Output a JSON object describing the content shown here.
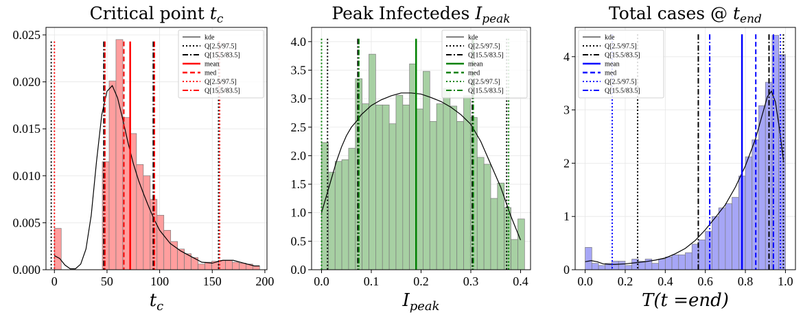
{
  "chart_data": [
    {
      "type": "histogram",
      "title": "Critical point ",
      "title_math": "t",
      "title_sub": "c",
      "xlabel": "t",
      "xlabel_sub": "c",
      "xlim": [
        -8,
        202
      ],
      "ylim": [
        0,
        0.0258
      ],
      "xticks": [
        0,
        50,
        100,
        150,
        200
      ],
      "xtick_labels": [
        "0",
        "50",
        "100",
        "150",
        "200"
      ],
      "yticks": [
        0,
        0.005,
        0.01,
        0.015,
        0.02,
        0.025
      ],
      "ytick_labels": [
        "0.000",
        "0.005",
        "0.010",
        "0.015",
        "0.020",
        "0.025"
      ],
      "color": "#ff0000",
      "bin_edges": [
        0,
        6.5,
        13,
        19.5,
        26,
        32.5,
        39,
        45.5,
        52,
        58.5,
        65,
        71.5,
        78,
        84.5,
        91,
        97.5,
        104,
        110.5,
        117,
        123.5,
        130,
        136.5,
        143,
        149.5,
        156,
        162.5,
        169,
        175.5,
        182,
        188.5,
        195
      ],
      "counts": [
        0.0044,
        0,
        0,
        0,
        0,
        0,
        0,
        0.0115,
        0.0201,
        0.0245,
        0.0162,
        0.0145,
        0.0112,
        0.01,
        0.0075,
        0.0058,
        0.0042,
        0.003,
        0.0022,
        0.0017,
        0.0013,
        0.0006,
        0.0008,
        0.0009,
        0.001,
        0.001,
        0.0008,
        0.0007,
        0.0006,
        0.0004
      ],
      "kde_x": [
        0,
        5,
        10,
        15,
        20,
        25,
        30,
        35,
        40,
        45,
        50,
        55,
        60,
        65,
        70,
        75,
        80,
        85,
        90,
        95,
        100,
        110,
        120,
        130,
        140,
        150,
        160,
        170,
        180,
        190,
        195
      ],
      "kde_y": [
        0.0015,
        0.0012,
        0.0005,
        0.0001,
        0.0001,
        0.0006,
        0.0022,
        0.0058,
        0.0115,
        0.0165,
        0.019,
        0.0196,
        0.0183,
        0.016,
        0.0135,
        0.0113,
        0.0095,
        0.008,
        0.0066,
        0.0053,
        0.0042,
        0.0028,
        0.002,
        0.0014,
        0.0008,
        0.0007,
        0.001,
        0.001,
        0.0007,
        0.0004,
        0.0004
      ],
      "vlines": [
        {
          "x": -3,
          "style": "dotted",
          "color": "#000000",
          "top": 0.0243
        },
        {
          "x": 156,
          "style": "dotted",
          "color": "#000000",
          "top": 0.0243
        },
        {
          "x": 47,
          "style": "dashdot",
          "color": "#000000",
          "top": 0.0243
        },
        {
          "x": 94,
          "style": "dashdot",
          "color": "#000000",
          "top": 0.0243
        },
        {
          "x": 72,
          "style": "solid",
          "color": "#ff0000",
          "top": 0.0243
        },
        {
          "x": 66,
          "style": "dashed",
          "color": "#ff0000",
          "top": 0.0243
        },
        {
          "x": 0,
          "style": "dotted",
          "color": "#ff0000",
          "top": 0.0243
        },
        {
          "x": 157,
          "style": "dotted",
          "color": "#ff0000",
          "top": 0.0243
        },
        {
          "x": 48,
          "style": "dashdot",
          "color": "#ff0000",
          "top": 0.0243
        },
        {
          "x": 95,
          "style": "dashdot",
          "color": "#ff0000",
          "top": 0.0243
        }
      ],
      "legend_placement": "top-right",
      "legend": [
        {
          "label": "kde",
          "style": "solid",
          "color": "#000000",
          "width": 1
        },
        {
          "label": "Q[2.5/97.5]",
          "style": "dotted",
          "color": "#000000",
          "width": 2
        },
        {
          "label": "Q[15.5/83.5]",
          "style": "dashdot",
          "color": "#000000",
          "width": 2
        },
        {
          "label": "mean",
          "style": "solid",
          "color": "#ff0000",
          "width": 2.5
        },
        {
          "label": "med",
          "style": "dashed",
          "color": "#ff0000",
          "width": 2.5
        },
        {
          "label": "Q[2.5/97.5]",
          "style": "dotted",
          "color": "#ff0000",
          "width": 2
        },
        {
          "label": "Q[15.5/83.5]",
          "style": "dashdot",
          "color": "#ff0000",
          "width": 2
        }
      ]
    },
    {
      "type": "histogram",
      "title": "Peak Infectedes ",
      "title_math": "I",
      "title_sub": "peak",
      "xlabel": "I",
      "xlabel_sub": "peak",
      "xlim": [
        -0.02,
        0.42
      ],
      "ylim": [
        0,
        4.25
      ],
      "xticks": [
        0,
        0.1,
        0.2,
        0.3,
        0.4
      ],
      "xtick_labels": [
        "0.0",
        "0.1",
        "0.2",
        "0.3",
        "0.4"
      ],
      "yticks": [
        0,
        0.5,
        1,
        1.5,
        2,
        2.5,
        3,
        3.5,
        4
      ],
      "ytick_labels": [
        "0.0",
        "0.5",
        "1.0",
        "1.5",
        "2.0",
        "2.5",
        "3.0",
        "3.5",
        "4.0"
      ],
      "color": "#008000",
      "bin_edges": [
        0,
        0.0136,
        0.0272,
        0.0408,
        0.0544,
        0.068,
        0.0816,
        0.0952,
        0.1088,
        0.1224,
        0.136,
        0.1496,
        0.1632,
        0.1768,
        0.1904,
        0.204,
        0.2176,
        0.2312,
        0.2448,
        0.2584,
        0.272,
        0.2856,
        0.2992,
        0.3128,
        0.3264,
        0.34,
        0.3536,
        0.3672,
        0.3808,
        0.3944,
        0.408
      ],
      "counts": [
        2.23,
        1.71,
        1.9,
        1.93,
        2.13,
        3.35,
        2.91,
        3.78,
        2.89,
        2.89,
        2.56,
        3.06,
        2.89,
        3.61,
        2.82,
        3.48,
        2.6,
        2.91,
        3.18,
        2.87,
        2.6,
        3.05,
        2.67,
        1.97,
        1.85,
        1.25,
        1.52,
        1.09,
        0.53,
        0.89
      ],
      "kde_x": [
        0,
        0.01,
        0.02,
        0.03,
        0.04,
        0.05,
        0.06,
        0.07,
        0.08,
        0.09,
        0.1,
        0.12,
        0.14,
        0.16,
        0.18,
        0.2,
        0.22,
        0.24,
        0.26,
        0.28,
        0.3,
        0.32,
        0.34,
        0.36,
        0.38,
        0.4
      ],
      "kde_y": [
        1.0,
        1.3,
        1.6,
        1.9,
        2.15,
        2.35,
        2.5,
        2.6,
        2.72,
        2.8,
        2.88,
        2.98,
        3.05,
        3.1,
        3.1,
        3.08,
        3.02,
        2.95,
        2.85,
        2.72,
        2.55,
        2.25,
        1.85,
        1.45,
        0.95,
        0.52
      ],
      "vlines": [
        {
          "x": 0.0,
          "style": "dotted",
          "color": "#008000",
          "top": 4.05
        },
        {
          "x": 0.012,
          "style": "dotted",
          "color": "#000000",
          "top": 4.05
        },
        {
          "x": 0.073,
          "style": "dashdot",
          "color": "#000000",
          "top": 4.05
        },
        {
          "x": 0.075,
          "style": "dashdot",
          "color": "#008000",
          "top": 4.05
        },
        {
          "x": 0.19,
          "style": "solid",
          "color": "#008000",
          "top": 4.05
        },
        {
          "x": 0.303,
          "style": "dashdot",
          "color": "#000000",
          "top": 4.05
        },
        {
          "x": 0.305,
          "style": "dashdot",
          "color": "#008000",
          "top": 4.05
        },
        {
          "x": 0.372,
          "style": "dotted",
          "color": "#000000",
          "top": 4.05
        },
        {
          "x": 0.376,
          "style": "dotted",
          "color": "#008000",
          "top": 4.05
        }
      ],
      "legend_placement": "top-right",
      "legend": [
        {
          "label": "kde",
          "style": "solid",
          "color": "#000000",
          "width": 1
        },
        {
          "label": "Q[2.5/97.5]",
          "style": "dotted",
          "color": "#000000",
          "width": 2
        },
        {
          "label": "Q[15.5/83.5]",
          "style": "dashdot",
          "color": "#000000",
          "width": 2
        },
        {
          "label": "mean",
          "style": "solid",
          "color": "#008000",
          "width": 2.5
        },
        {
          "label": "med",
          "style": "dashed",
          "color": "#008000",
          "width": 2.5
        },
        {
          "label": "Q[2.5/97.5]",
          "style": "dotted",
          "color": "#008000",
          "width": 2
        },
        {
          "label": "Q[15.5/83.5]",
          "style": "dashdot",
          "color": "#008000",
          "width": 2
        }
      ]
    },
    {
      "type": "histogram",
      "title": "Total cases @ ",
      "title_math": "t",
      "title_sub": "end",
      "xlabel": "T(t =end)",
      "xlabel_sub": "",
      "xlim": [
        -0.05,
        1.05
      ],
      "ylim": [
        0,
        4.55
      ],
      "xticks": [
        0,
        0.2,
        0.4,
        0.6,
        0.8,
        1.0
      ],
      "xtick_labels": [
        "0.0",
        "0.2",
        "0.4",
        "0.6",
        "0.8",
        "1.0"
      ],
      "yticks": [
        0,
        1,
        2,
        3,
        4
      ],
      "ytick_labels": [
        "0",
        "1",
        "2",
        "3",
        "4"
      ],
      "color": "#0000ff",
      "bin_edges": [
        0,
        0.0333,
        0.0667,
        0.1,
        0.1333,
        0.1667,
        0.2,
        0.2333,
        0.2667,
        0.3,
        0.3333,
        0.3667,
        0.4,
        0.4333,
        0.4667,
        0.5,
        0.5333,
        0.5667,
        0.6,
        0.6333,
        0.6667,
        0.7,
        0.7333,
        0.7667,
        0.8,
        0.8333,
        0.8667,
        0.9,
        0.9333,
        0.9667,
        1.0
      ],
      "counts": [
        0.42,
        0.12,
        0.08,
        0.12,
        0.16,
        0.16,
        0.08,
        0.2,
        0.16,
        0.2,
        0.12,
        0.2,
        0.24,
        0.28,
        0.28,
        0.32,
        0.48,
        0.56,
        0.72,
        1.0,
        1.16,
        1.24,
        1.36,
        1.76,
        2.12,
        2.44,
        3.08,
        3.52,
        4.4,
        4.04
      ],
      "kde_x": [
        0,
        0.03,
        0.06,
        0.09,
        0.12,
        0.15,
        0.2,
        0.25,
        0.3,
        0.35,
        0.4,
        0.45,
        0.5,
        0.55,
        0.6,
        0.65,
        0.7,
        0.75,
        0.8,
        0.85,
        0.88,
        0.91,
        0.93,
        0.95,
        0.97,
        0.99
      ],
      "kde_y": [
        0.15,
        0.17,
        0.15,
        0.11,
        0.1,
        0.1,
        0.11,
        0.13,
        0.15,
        0.18,
        0.22,
        0.3,
        0.4,
        0.55,
        0.75,
        0.98,
        1.22,
        1.55,
        1.95,
        2.45,
        2.85,
        3.25,
        3.35,
        3.15,
        2.65,
        2.05
      ],
      "vlines": [
        {
          "x": 0.135,
          "style": "dotted",
          "color": "#0000ff",
          "top": 4.42
        },
        {
          "x": 0.262,
          "style": "dotted",
          "color": "#000000",
          "top": 4.42
        },
        {
          "x": 0.565,
          "style": "dashdot",
          "color": "#000000",
          "top": 4.42
        },
        {
          "x": 0.622,
          "style": "dashdot",
          "color": "#0000ff",
          "top": 4.42
        },
        {
          "x": 0.783,
          "style": "solid",
          "color": "#0000ff",
          "top": 4.42
        },
        {
          "x": 0.852,
          "style": "dashed",
          "color": "#0000ff",
          "top": 4.42
        },
        {
          "x": 0.918,
          "style": "dashdot",
          "color": "#000000",
          "top": 4.42
        },
        {
          "x": 0.94,
          "style": "dashdot",
          "color": "#0000ff",
          "top": 4.42
        },
        {
          "x": 0.975,
          "style": "dotted",
          "color": "#0000ff",
          "top": 4.42
        },
        {
          "x": 0.99,
          "style": "dotted",
          "color": "#000000",
          "top": 4.42
        }
      ],
      "legend_placement": "top-left",
      "legend": [
        {
          "label": "kde",
          "style": "solid",
          "color": "#000000",
          "width": 1
        },
        {
          "label": "Q[2.5/97.5]",
          "style": "dotted",
          "color": "#000000",
          "width": 2
        },
        {
          "label": "Q[15.5/83.5]",
          "style": "dashdot",
          "color": "#000000",
          "width": 2
        },
        {
          "label": "mean",
          "style": "solid",
          "color": "#0000ff",
          "width": 2.5
        },
        {
          "label": "med",
          "style": "dashed",
          "color": "#0000ff",
          "width": 2.5
        },
        {
          "label": "Q[2.5/97.5]",
          "style": "dotted",
          "color": "#0000ff",
          "width": 2
        },
        {
          "label": "Q[15.5/83.5]",
          "style": "dashdot",
          "color": "#0000ff",
          "width": 2
        }
      ]
    }
  ]
}
